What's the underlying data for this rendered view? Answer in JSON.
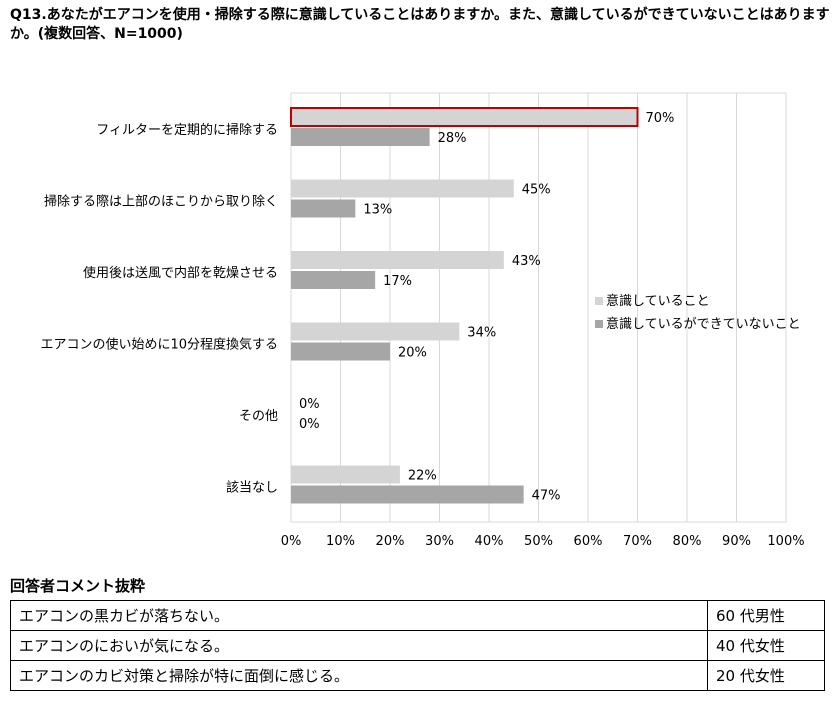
{
  "question": "Q13.あなたがエアコンを使用・掃除する際に意識していることはありますか。また、意識しているができていないことはありますか。(複数回答、N=1000)",
  "chart_data": {
    "type": "bar",
    "orientation": "horizontal",
    "categories": [
      "フィルターを定期的に掃除する",
      "掃除する際は上部のほこりから取り除く",
      "使用後は送風で内部を乾燥させる",
      "エアコンの使い始めに10分程度換気する",
      "その他",
      "該当なし"
    ],
    "series": [
      {
        "name": "意識していること",
        "values": [
          70,
          45,
          43,
          34,
          0,
          22
        ],
        "color": "#d4d4d4"
      },
      {
        "name": "意識しているができていないこと",
        "values": [
          28,
          13,
          17,
          20,
          0,
          47
        ],
        "color": "#a6a6a6"
      }
    ],
    "value_suffix": "%",
    "x_ticks": [
      "0%",
      "10%",
      "20%",
      "30%",
      "40%",
      "50%",
      "60%",
      "70%",
      "80%",
      "90%",
      "100%"
    ],
    "xlim": [
      0,
      100
    ],
    "grid": true,
    "legend_position": "right",
    "highlight": {
      "category_index": 0,
      "series_index": 0,
      "color": "#c00000"
    }
  },
  "comments": {
    "heading": "回答者コメント抜粋",
    "rows": [
      {
        "text": "エアコンの黒カビが落ちない。",
        "respondent": "60 代男性"
      },
      {
        "text": "エアコンのにおいが気になる。",
        "respondent": "40 代女性"
      },
      {
        "text": "エアコンのカビ対策と掃除が特に面倒に感じる。",
        "respondent": "20 代女性"
      }
    ]
  }
}
